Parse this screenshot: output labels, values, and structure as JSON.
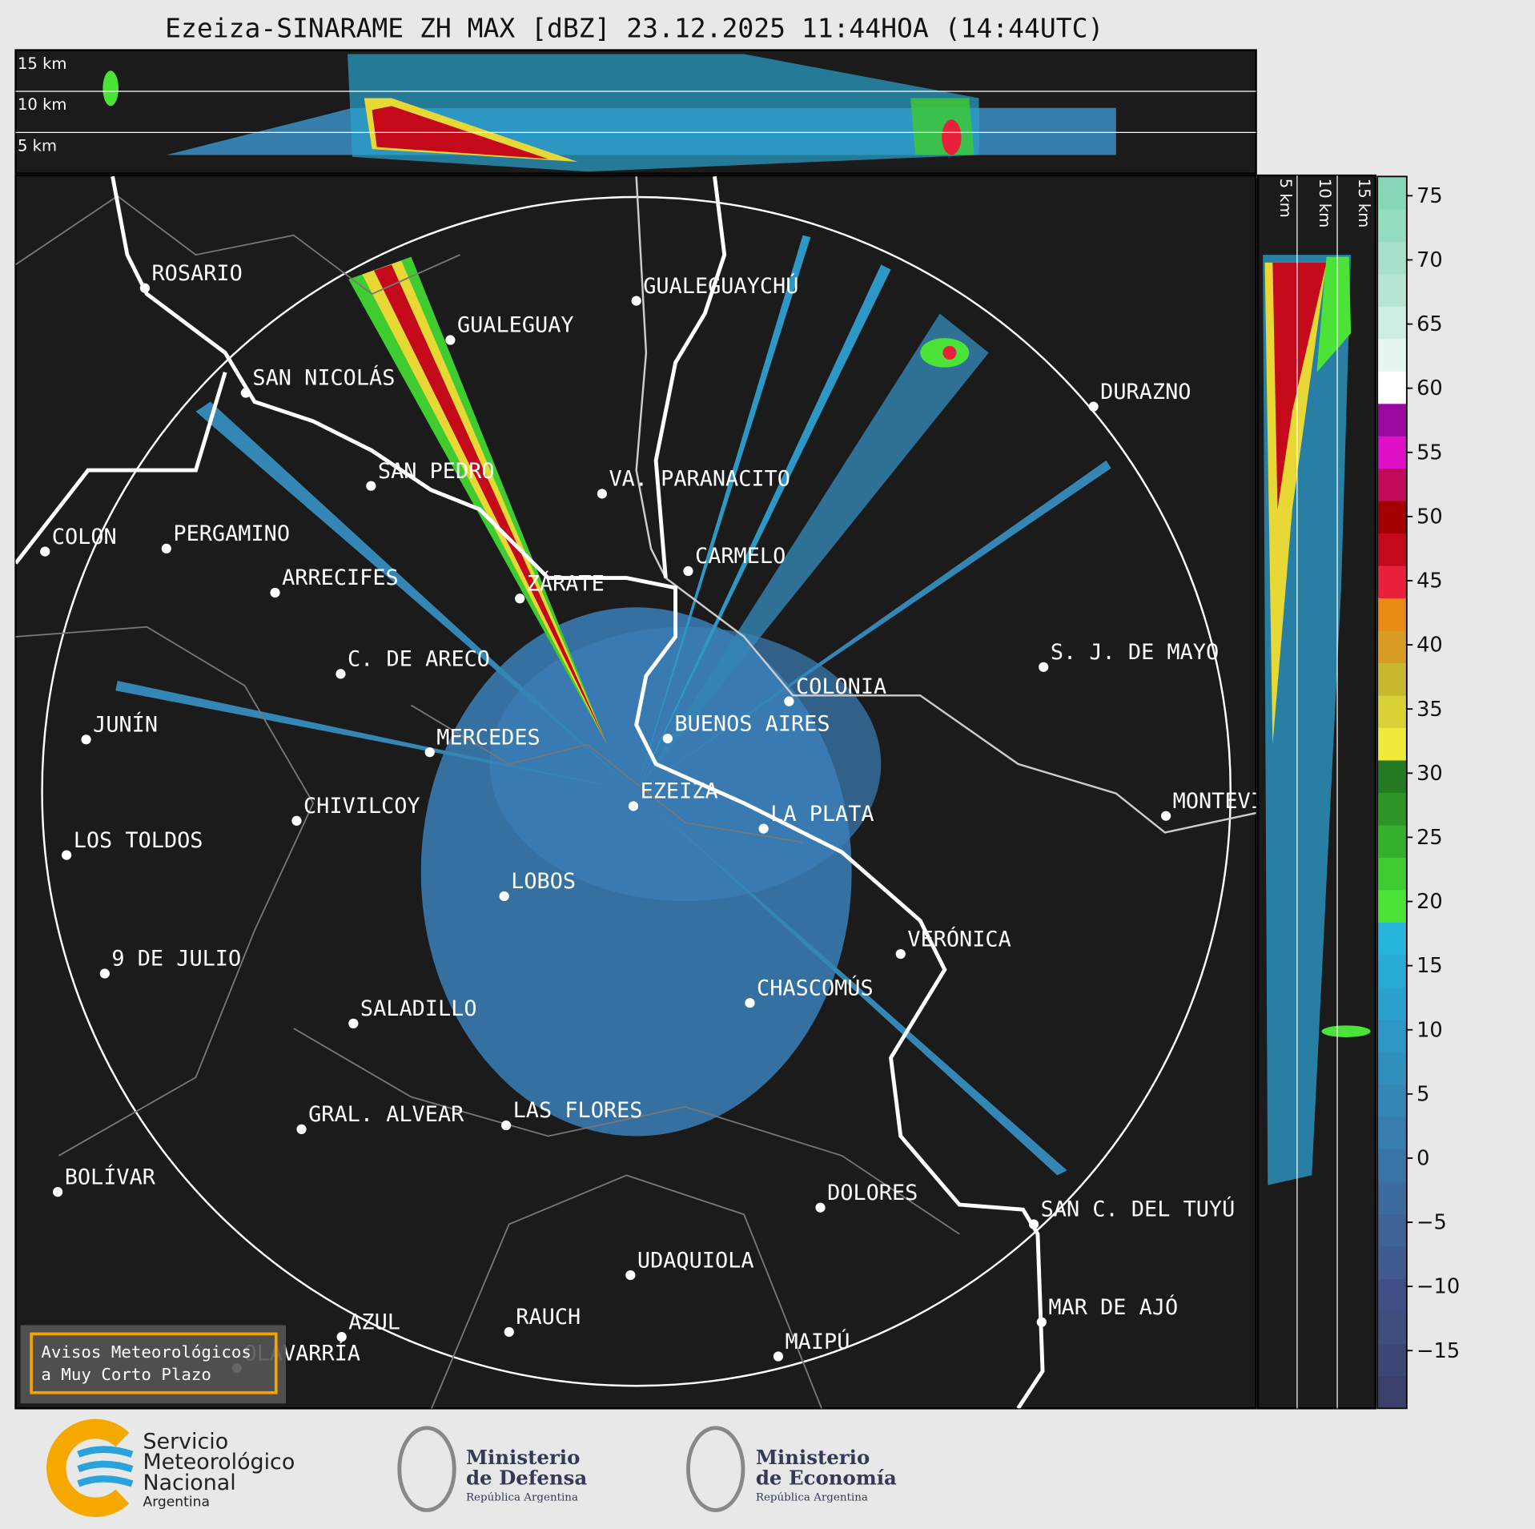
{
  "title": "Ezeiza-SINARAME ZH MAX [dBZ] 23.12.2025 11:44HOA (14:44UTC)",
  "height_labels": [
    "15 km",
    "10 km",
    "5 km"
  ],
  "cities": [
    "ROSARIO",
    "GUALEGUAYCHÚ",
    "GUALEGUAY",
    "SAN NICOLÁS",
    "DURAZNO",
    "SAN PEDRO",
    "VA. PARANACITO",
    "COLON",
    "PERGAMINO",
    "CARMELO",
    "ARRECIFES",
    "ZÁRATE",
    "S. J. DE MAYO",
    "C. DE ARECO",
    "COLONIA",
    "BUENOS AIRES",
    "JUNÍN",
    "MERCEDES",
    "MONTEVIDEO",
    "EZEIZA",
    "CHIVILCOY",
    "LA PLATA",
    "LOS TOLDOS",
    "LOBOS",
    "VERÓNICA",
    "9 DE JULIO",
    "CHASCOMÚS",
    "SALADILLO",
    "GRAL. ALVEAR",
    "LAS FLORES",
    "BOLÍVAR",
    "DOLORES",
    "SAN C. DEL TUYÚ",
    "UDAQUIOLA",
    "MAR DE AJÓ",
    "RAUCH",
    "AZUL",
    "OLAVARRÍA",
    "MAIPÚ"
  ],
  "colorbar": {
    "lim": [
      -19.5,
      76.5
    ],
    "ticks": [
      75,
      70,
      65,
      60,
      55,
      50,
      45,
      40,
      35,
      30,
      25,
      20,
      15,
      10,
      5,
      0,
      {
        "value": -5,
        "label": "−5"
      },
      {
        "value": -10,
        "label": "−10"
      },
      {
        "value": -15,
        "label": "−15"
      }
    ],
    "colors": [
      "#3b3f6b",
      "#3d4775",
      "#3e4f7e",
      "#404f85",
      "#3f5a8e",
      "#3e6396",
      "#3c6b9d",
      "#3a74a5",
      "#377dad",
      "#3486b5",
      "#318fbd",
      "#2d98c5",
      "#2aa2cd",
      "#27abd4",
      "#25b5dc",
      "#4ce339",
      "#3fcc30",
      "#34b02a",
      "#2c9525",
      "#247a20",
      "#f0ea3a",
      "#d8d236",
      "#c7b82e",
      "#d89c22",
      "#e88a14",
      "#e8203a",
      "#c40a1a",
      "#a30000",
      "#c20a5a",
      "#e010c8",
      "#9a0aa0",
      "#ffffff",
      "#e6f5ee",
      "#cdeee0",
      "#b5e6d4",
      "#a6e0cb",
      "#94dcc0",
      "#86d6b8"
    ]
  },
  "badge": [
    "Avisos Meteorológicos",
    "a Muy Corto Plazo"
  ],
  "logos": {
    "smn": [
      "Servicio",
      "Meteorológico",
      "Nacional",
      "Argentina"
    ],
    "defensa": [
      "Ministerio",
      "de Defensa",
      "República Argentina"
    ],
    "economia": [
      "Ministerio",
      "de Economía",
      "República Argentina"
    ]
  }
}
